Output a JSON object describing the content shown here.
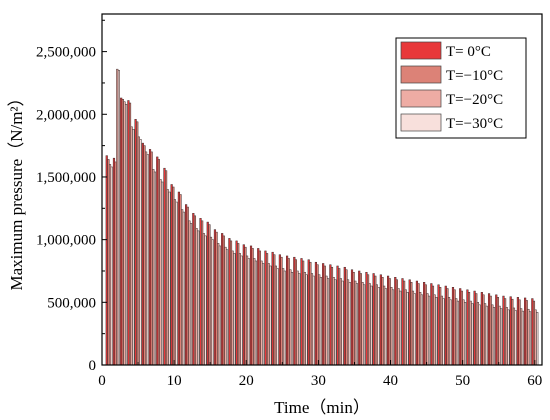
{
  "chart_data": {
    "type": "bar",
    "xlabel": "Time（min）",
    "ylabel": "Maximum pressure（N/m²）",
    "xlim": [
      0,
      61
    ],
    "ylim": [
      0,
      2800000
    ],
    "x_ticks": [
      0,
      10,
      20,
      30,
      40,
      50,
      60
    ],
    "y_ticks": [
      0,
      500000,
      1000000,
      1500000,
      2000000,
      2500000
    ],
    "y_tick_labels": [
      "0",
      "500,000",
      "1,000,000",
      "1,500,000",
      "2,000,000",
      "2,500,000"
    ],
    "legend_position": "top-right",
    "minutes": [
      1,
      2,
      3,
      4,
      5,
      6,
      7,
      8,
      9,
      10,
      11,
      12,
      13,
      14,
      15,
      16,
      17,
      18,
      19,
      20,
      21,
      22,
      23,
      24,
      25,
      26,
      27,
      28,
      29,
      30,
      31,
      32,
      33,
      34,
      35,
      36,
      37,
      38,
      39,
      40,
      41,
      42,
      43,
      44,
      45,
      46,
      47,
      48,
      49,
      50,
      51,
      52,
      53,
      54,
      55,
      56,
      57,
      58,
      59,
      60
    ],
    "series": [
      {
        "name": "T= 0°C",
        "color": "#e8383a",
        "values": [
          1670000,
          1650000,
          2130000,
          2110000,
          1960000,
          1770000,
          1720000,
          1660000,
          1570000,
          1440000,
          1380000,
          1280000,
          1210000,
          1170000,
          1140000,
          1080000,
          1050000,
          1010000,
          990000,
          960000,
          950000,
          930000,
          910000,
          900000,
          880000,
          870000,
          860000,
          850000,
          840000,
          820000,
          810000,
          800000,
          790000,
          780000,
          760000,
          750000,
          740000,
          730000,
          720000,
          710000,
          700000,
          690000,
          680000,
          670000,
          660000,
          650000,
          640000,
          630000,
          620000,
          610000,
          600000,
          590000,
          580000,
          570000,
          560000,
          550000,
          545000,
          540000,
          535000,
          530000
        ]
      },
      {
        "name": "T=−10°C",
        "color": "#dc8277",
        "values": [
          1640000,
          1620000,
          2120000,
          2090000,
          1940000,
          1750000,
          1700000,
          1640000,
          1550000,
          1420000,
          1360000,
          1260000,
          1190000,
          1150000,
          1120000,
          1060000,
          1030000,
          990000,
          970000,
          940000,
          930000,
          910000,
          890000,
          880000,
          860000,
          850000,
          840000,
          830000,
          820000,
          800000,
          790000,
          780000,
          770000,
          760000,
          740000,
          730000,
          720000,
          710000,
          700000,
          690000,
          680000,
          670000,
          660000,
          650000,
          640000,
          630000,
          620000,
          610000,
          600000,
          590000,
          580000,
          570000,
          560000,
          550000,
          540000,
          530000,
          525000,
          520000,
          515000,
          510000
        ]
      },
      {
        "name": "T=−20°C",
        "color": "#eeaca4",
        "values": [
          1600000,
          2360000,
          2100000,
          1900000,
          1820000,
          1700000,
          1560000,
          1480000,
          1400000,
          1320000,
          1240000,
          1150000,
          1090000,
          1050000,
          1020000,
          970000,
          940000,
          910000,
          890000,
          870000,
          850000,
          830000,
          810000,
          790000,
          770000,
          760000,
          750000,
          740000,
          730000,
          720000,
          710000,
          700000,
          690000,
          680000,
          670000,
          660000,
          650000,
          640000,
          630000,
          620000,
          610000,
          600000,
          590000,
          580000,
          570000,
          560000,
          550000,
          540000,
          530000,
          520000,
          510000,
          500000,
          490000,
          480000,
          470000,
          460000,
          455000,
          450000,
          445000,
          440000
        ]
      },
      {
        "name": "T=−30°C",
        "color": "#f8e0dc",
        "values": [
          1580000,
          2350000,
          2080000,
          1880000,
          1800000,
          1680000,
          1540000,
          1460000,
          1380000,
          1300000,
          1220000,
          1130000,
          1070000,
          1030000,
          1000000,
          950000,
          920000,
          890000,
          870000,
          850000,
          830000,
          810000,
          790000,
          770000,
          750000,
          740000,
          730000,
          720000,
          710000,
          700000,
          690000,
          680000,
          670000,
          660000,
          650000,
          640000,
          630000,
          620000,
          610000,
          600000,
          590000,
          580000,
          570000,
          560000,
          550000,
          540000,
          530000,
          520000,
          510000,
          500000,
          490000,
          480000,
          470000,
          460000,
          450000,
          440000,
          435000,
          430000,
          425000,
          420000
        ]
      }
    ]
  }
}
